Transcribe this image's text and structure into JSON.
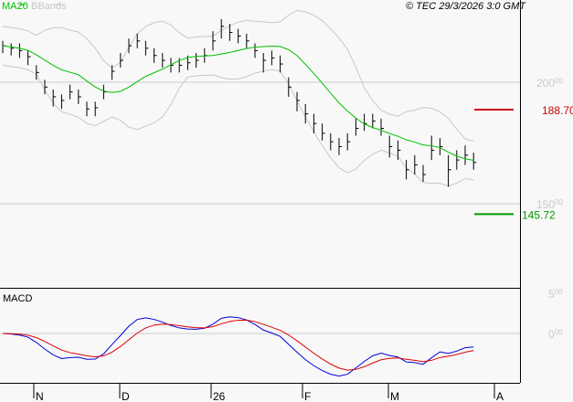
{
  "legend": {
    "ma_label": "MA20",
    "ma_color": "#00c000",
    "bb_label": "BBands",
    "bb_color": "#c8c8c8"
  },
  "copyright": "© TEC 29/3/2026 3:0 GMT",
  "macd_label": "MACD",
  "chart_data": {
    "type": "ohlc-bar",
    "price_axis": {
      "ticks": [
        {
          "value": 200,
          "int": "200",
          "dec": "00"
        },
        {
          "value": 150,
          "int": "150",
          "dec": "00"
        }
      ]
    },
    "macd_axis": {
      "ticks": [
        {
          "value": 5,
          "int": "5",
          "dec": "00"
        },
        {
          "value": 0,
          "int": "0",
          "dec": "00"
        }
      ]
    },
    "x_labels": [
      "N",
      "D",
      "26",
      "F",
      "M",
      "A"
    ],
    "levels": [
      {
        "value": 188.7,
        "label": "188.70",
        "int": "188",
        "dec": "70",
        "color": "#cc0000"
      },
      {
        "value": 145.72,
        "label": "145.72",
        "int": "145",
        "dec": "72",
        "color": "#009900"
      }
    ],
    "macd_colors": {
      "macd": "#0000dd",
      "signal": "#dd0000"
    },
    "bars": [
      [
        217,
        212,
        215
      ],
      [
        216,
        211,
        214
      ],
      [
        216,
        210,
        213
      ],
      [
        213,
        207,
        210.5
      ],
      [
        207,
        201,
        204
      ],
      [
        201,
        195,
        198
      ],
      [
        197,
        190,
        194
      ],
      [
        195,
        189,
        192.5
      ],
      [
        199,
        193,
        196
      ],
      [
        197,
        191,
        194
      ],
      [
        192,
        186,
        189
      ],
      [
        192,
        186,
        189.5
      ],
      [
        199,
        193,
        196
      ],
      [
        207,
        201,
        204.5
      ],
      [
        212,
        206,
        209
      ],
      [
        218,
        212,
        215
      ],
      [
        220,
        214,
        217
      ],
      [
        217,
        211,
        214
      ],
      [
        214,
        208,
        211
      ],
      [
        212,
        206,
        209
      ],
      [
        210,
        204,
        207
      ],
      [
        210,
        204,
        207
      ],
      [
        211,
        205,
        208
      ],
      [
        212,
        206,
        209
      ],
      [
        214,
        208,
        211
      ],
      [
        221,
        213,
        217
      ],
      [
        226,
        218,
        223
      ],
      [
        224,
        217,
        220.5
      ],
      [
        222,
        216,
        219
      ],
      [
        220,
        214,
        217
      ],
      [
        216,
        210,
        213
      ],
      [
        212,
        204,
        209
      ],
      [
        213,
        207,
        210
      ],
      [
        211,
        204,
        207.5
      ],
      [
        202,
        194,
        198
      ],
      [
        196,
        188,
        192.5
      ],
      [
        191,
        183,
        187
      ],
      [
        187,
        179,
        183
      ],
      [
        183,
        176,
        179
      ],
      [
        179,
        172,
        175.5
      ],
      [
        177,
        170,
        173.5
      ],
      [
        179,
        172,
        175.5
      ],
      [
        185,
        178,
        181
      ],
      [
        187,
        180,
        183
      ],
      [
        187,
        181,
        184
      ],
      [
        185,
        178,
        181
      ],
      [
        178,
        169,
        173.5
      ],
      [
        176,
        168,
        172
      ],
      [
        168,
        160,
        164
      ],
      [
        170,
        162,
        166
      ],
      [
        166,
        159,
        162
      ],
      [
        178,
        168,
        172
      ],
      [
        177,
        170,
        173.5
      ],
      [
        170,
        157,
        164
      ],
      [
        172,
        164,
        168
      ],
      [
        174,
        166,
        170
      ],
      [
        171,
        164,
        167
      ]
    ]
  }
}
